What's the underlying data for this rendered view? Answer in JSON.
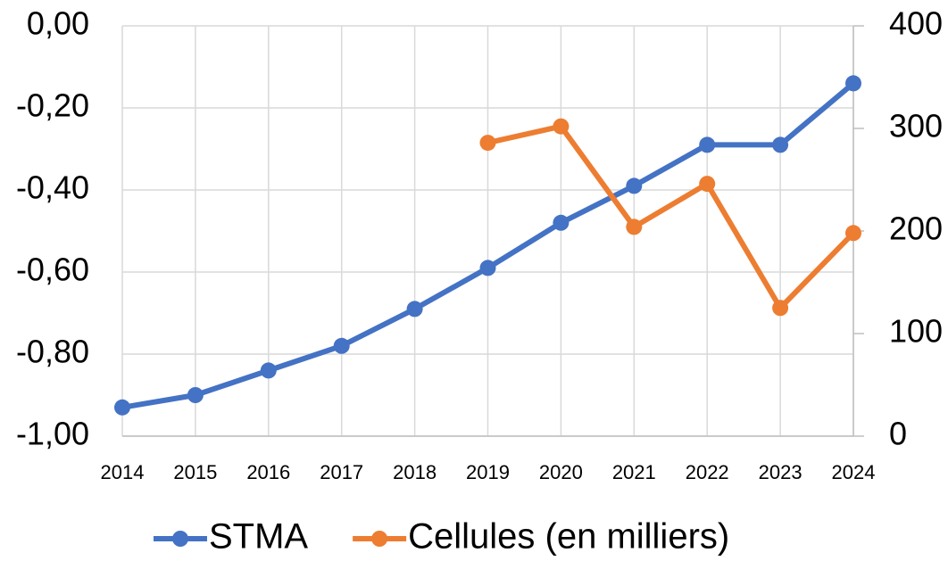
{
  "chart_data": {
    "type": "line",
    "x": [
      2014,
      2015,
      2016,
      2017,
      2018,
      2019,
      2020,
      2021,
      2022,
      2023,
      2024
    ],
    "xlim": [
      2014,
      2024
    ],
    "xticks": [
      2014,
      2015,
      2016,
      2017,
      2018,
      2019,
      2020,
      2021,
      2022,
      2023,
      2024
    ],
    "ylim": [
      -1,
      0
    ],
    "yticks": [
      {
        "value": -1,
        "label": "-1,00"
      },
      {
        "value": -0.8,
        "label": "-0,80"
      },
      {
        "value": -0.6,
        "label": "-0,60"
      },
      {
        "value": -0.4,
        "label": "-0,40"
      },
      {
        "value": -0.2,
        "label": "-0,20"
      },
      {
        "value": 0,
        "label": "0,00"
      }
    ],
    "y2lim": [
      0,
      400
    ],
    "y2ticks": [
      0,
      100,
      200,
      300,
      400
    ],
    "grid": true,
    "legend": "bottom",
    "series": [
      {
        "name": "STMA",
        "color": "#4472c4",
        "values": [
          -0.93,
          -0.9,
          -0.84,
          -0.78,
          -0.69,
          -0.59,
          -0.48,
          -0.39,
          -0.29,
          -0.29,
          -0.14
        ]
      },
      {
        "name": "Cellules (en milliers)",
        "color": "#ed7d31",
        "axis": "y2",
        "values": [
          null,
          null,
          null,
          null,
          null,
          286,
          302,
          204,
          246,
          125,
          198
        ]
      }
    ]
  }
}
